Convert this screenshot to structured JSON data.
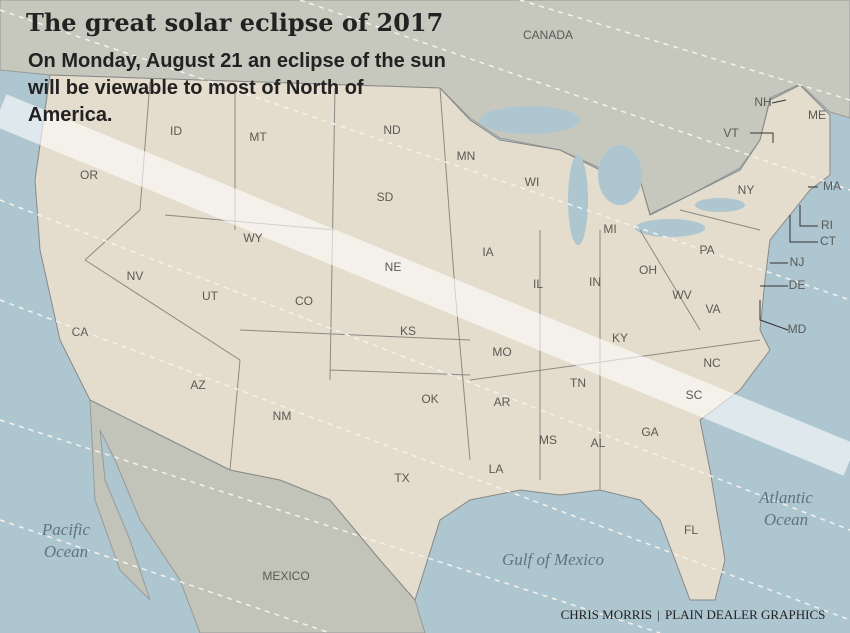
{
  "title": "The great solar eclipse of 2017",
  "subtitle": "On Monday, August 21 an eclipse of the sun will be viewable to most of North of America.",
  "regions": [
    "CANADA",
    "MEXICO"
  ],
  "water": [
    [
      "Pacific",
      "Ocean"
    ],
    [
      "Atlantic",
      "Ocean"
    ],
    [
      "Gulf of Mexico"
    ]
  ],
  "states": [
    "ID",
    "MT",
    "ND",
    "MN",
    "OR",
    "WI",
    "SD",
    "WY",
    "NE",
    "IA",
    "MI",
    "NV",
    "UT",
    "CO",
    "IL",
    "IN",
    "OH",
    "PA",
    "NY",
    "VT",
    "NH",
    "ME",
    "MA",
    "RI",
    "CT",
    "NJ",
    "DE",
    "MD",
    "WV",
    "VA",
    "KS",
    "MO",
    "KY",
    "CA",
    "AZ",
    "NM",
    "OK",
    "AR",
    "TN",
    "NC",
    "SC",
    "MS",
    "AL",
    "GA",
    "TX",
    "LA",
    "FL"
  ],
  "credit": [
    "CHRIS MORRIS",
    "PLAIN DEALER GRAPHICS"
  ]
}
